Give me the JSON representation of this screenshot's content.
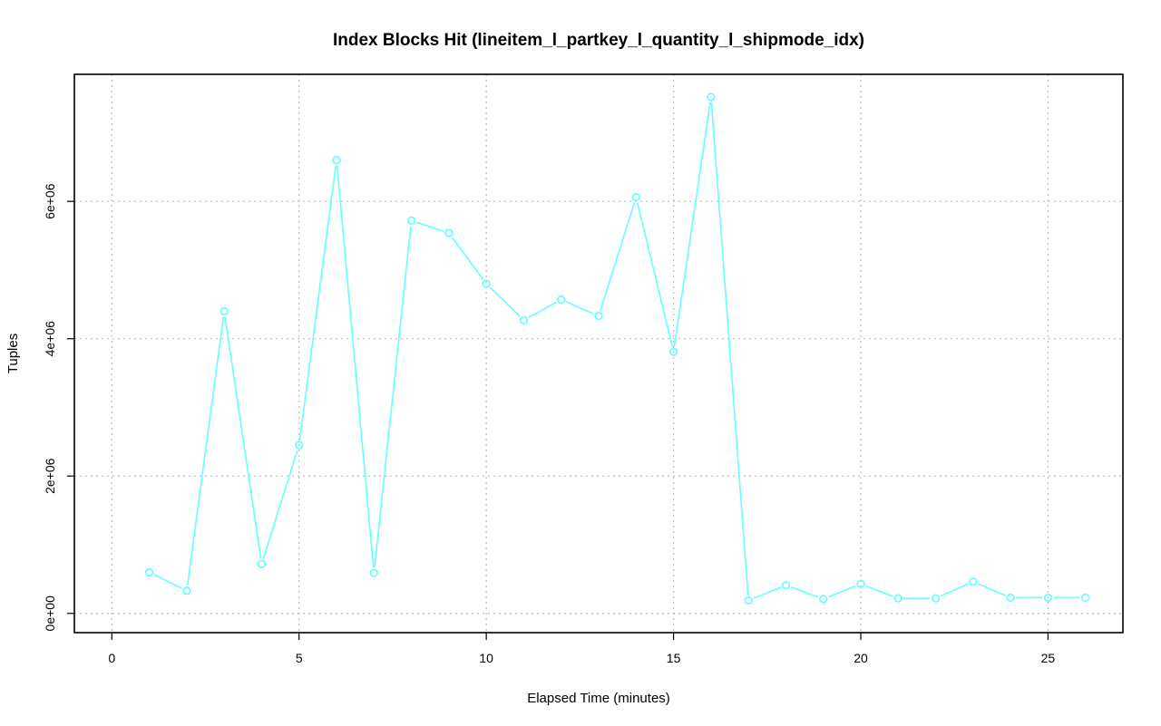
{
  "chart_data": {
    "type": "line",
    "title": "Index Blocks Hit (lineitem_l_partkey_l_quantity_l_shipmode_idx)",
    "xlabel": "Elapsed Time (minutes)",
    "ylabel": "Tuples",
    "xlim": [
      -1,
      27
    ],
    "ylim": [
      -280000,
      7850000
    ],
    "x_ticks": [
      0,
      5,
      10,
      15,
      20,
      25
    ],
    "x_tick_labels": [
      "0",
      "5",
      "10",
      "15",
      "20",
      "25"
    ],
    "y_ticks": [
      0,
      2000000,
      4000000,
      6000000
    ],
    "y_tick_labels": [
      "0e+00",
      "2e+06",
      "4e+06",
      "6e+06"
    ],
    "grid": true,
    "series_color": "#66ffff",
    "series": [
      {
        "x": [
          1,
          2,
          3,
          4,
          5,
          6,
          7,
          8,
          9,
          10,
          11,
          12,
          13,
          14,
          15,
          16,
          17,
          18,
          19,
          20,
          21,
          22,
          23,
          24,
          25,
          26
        ],
        "values": [
          600000,
          330000,
          4400000,
          720000,
          2450000,
          6600000,
          590000,
          5720000,
          5540000,
          4800000,
          4270000,
          4570000,
          4330000,
          6060000,
          3810000,
          7520000,
          190000,
          410000,
          210000,
          430000,
          220000,
          220000,
          460000,
          230000,
          230000,
          230000
        ]
      }
    ]
  }
}
